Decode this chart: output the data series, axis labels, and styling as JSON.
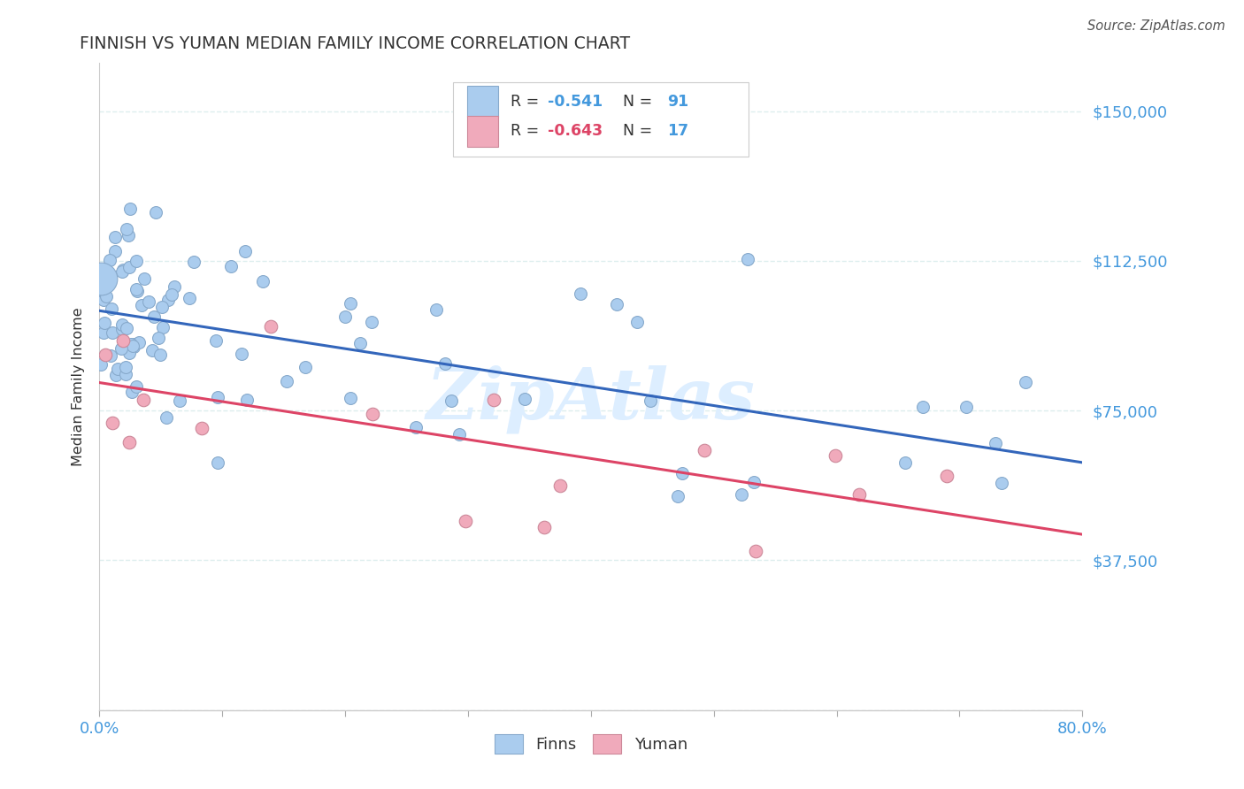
{
  "title": "FINNISH VS YUMAN MEDIAN FAMILY INCOME CORRELATION CHART",
  "source": "Source: ZipAtlas.com",
  "ylabel": "Median Family Income",
  "xlim": [
    0.0,
    0.8
  ],
  "ylim": [
    0,
    162000
  ],
  "yticks": [
    0,
    37500,
    75000,
    112500,
    150000
  ],
  "ytick_labels": [
    "",
    "$37,500",
    "$75,000",
    "$112,500",
    "$150,000"
  ],
  "legend1_text_r": "R = -0.541",
  "legend1_text_n": "  N = 91",
  "legend2_text_r": "R = -0.643",
  "legend2_text_n": "  N = 17",
  "finns_color": "#aaccee",
  "finns_edge_color": "#88aacc",
  "yuman_color": "#f0aabb",
  "yuman_edge_color": "#cc8899",
  "blue_line_color": "#3366bb",
  "pink_line_color": "#dd4466",
  "title_color": "#333333",
  "axis_label_color": "#333333",
  "tick_label_color": "#4499dd",
  "watermark_color": "#ddeeff",
  "background_color": "#ffffff",
  "grid_color": "#ddeeee",
  "finns_trendline_x": [
    0.0,
    0.8
  ],
  "finns_trendline_y": [
    100000,
    62000
  ],
  "yuman_trendline_x": [
    0.0,
    0.8
  ],
  "yuman_trendline_y": [
    82000,
    44000
  ],
  "dot_size_finns": 100,
  "dot_size_yuman": 110,
  "large_dot_size": 700
}
